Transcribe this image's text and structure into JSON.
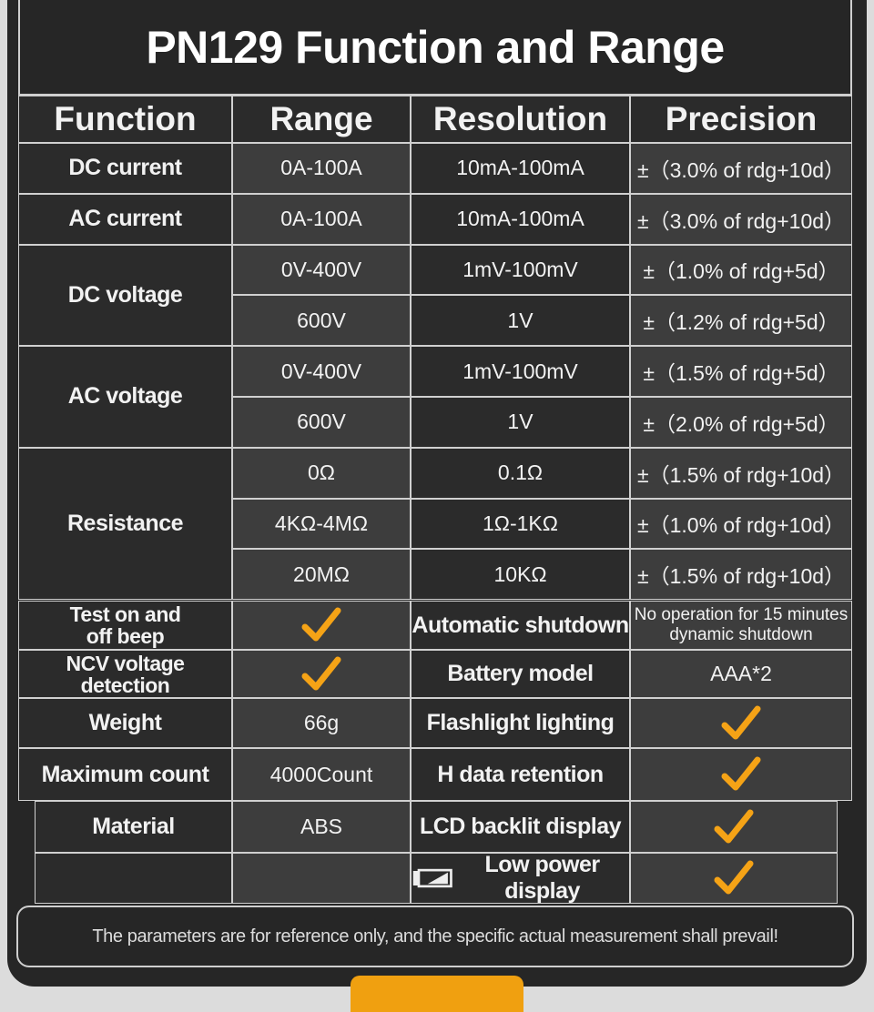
{
  "title": "PN129 Function and Range",
  "table": {
    "header": [
      "Function",
      "Range",
      "Resolution",
      "Precision"
    ],
    "groups": [
      {
        "function": "DC current",
        "rows": [
          [
            "0A-100A",
            "10mA-100mA",
            "±（3.0% of rdg+10d）"
          ]
        ]
      },
      {
        "function": "AC current",
        "rows": [
          [
            "0A-100A",
            "10mA-100mA",
            "±（3.0% of rdg+10d）"
          ]
        ]
      },
      {
        "function": "DC voltage",
        "rows": [
          [
            "0V-400V",
            "1mV-100mV",
            "±（1.0% of rdg+5d）"
          ],
          [
            "600V",
            "1V",
            "±（1.2% of rdg+5d）"
          ]
        ]
      },
      {
        "function": "AC voltage",
        "rows": [
          [
            "0V-400V",
            "1mV-100mV",
            "±（1.5% of rdg+5d）"
          ],
          [
            "600V",
            "1V",
            "±（2.0% of rdg+5d）"
          ]
        ]
      },
      {
        "function": "Resistance",
        "rows": [
          [
            "0Ω",
            "0.1Ω",
            "±（1.5% of rdg+10d）"
          ],
          [
            "4KΩ-4MΩ",
            "1Ω-1KΩ",
            "±（1.0% of rdg+10d）"
          ],
          [
            "20MΩ",
            "10KΩ",
            "±（1.5% of rdg+10d）"
          ]
        ]
      }
    ]
  },
  "features": {
    "left": [
      {
        "label": "Test on and\noff beep",
        "check": true
      },
      {
        "label": "NCV voltage\ndetection",
        "check": true
      },
      {
        "label": "Weight",
        "value": "66g"
      },
      {
        "label": "Maximum count",
        "value": "4000Count"
      },
      {
        "label": "Material",
        "value": "ABS"
      }
    ],
    "right": [
      {
        "label": "Automatic shutdown",
        "value": "No operation for 15 minutes\ndynamic shutdown"
      },
      {
        "label": "Battery model",
        "value": "AAA*2"
      },
      {
        "label": "Flashlight lighting",
        "check": true
      },
      {
        "label": "H data retention",
        "check": true
      },
      {
        "label": "LCD backlit display",
        "check": true
      },
      {
        "label": "Low power display",
        "check": true
      }
    ]
  },
  "note": "The parameters are for reference only, and the specific actual measurement shall prevail!"
}
